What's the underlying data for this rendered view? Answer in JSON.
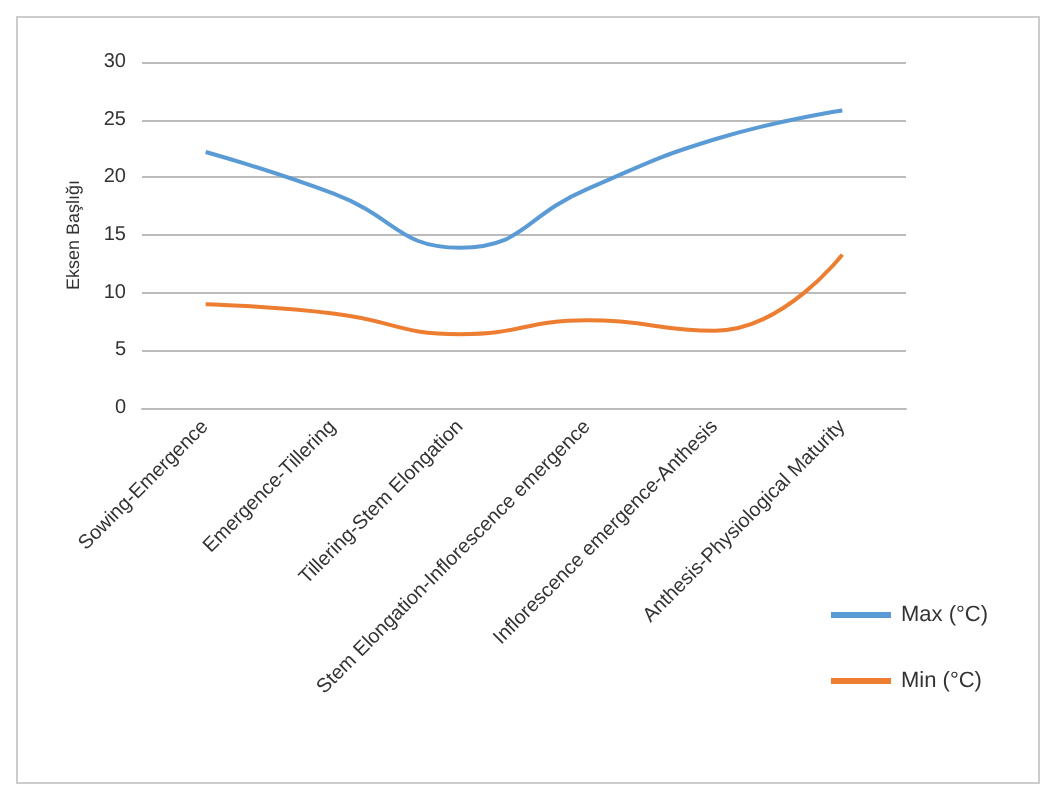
{
  "chart_data": {
    "type": "line",
    "ylabel": "Eksen Başlığı",
    "categories": [
      "Sowing-Emergence",
      "Emergence-Tillering",
      "Tillering-Stem Elongation",
      "Stem Elongation-Inflorescence emergence",
      "Inflorescence emergence-Anthesis",
      "Anthesis-Physiological Maturity"
    ],
    "series": [
      {
        "name": "Max (°C)",
        "color": "#5b9bd5",
        "values": [
          22.2,
          18.6,
          13.9,
          19.0,
          23.3,
          25.8
        ]
      },
      {
        "name": "Min (°C)",
        "color": "#ed7d31",
        "values": [
          9.0,
          8.2,
          6.4,
          7.6,
          6.7,
          13.3
        ]
      }
    ],
    "ylim": [
      0,
      30
    ],
    "yticks": [
      0,
      5,
      10,
      15,
      20,
      25,
      30
    ],
    "grid": "y",
    "legend": "bottom right",
    "marker": "none",
    "line_style": "solid"
  }
}
